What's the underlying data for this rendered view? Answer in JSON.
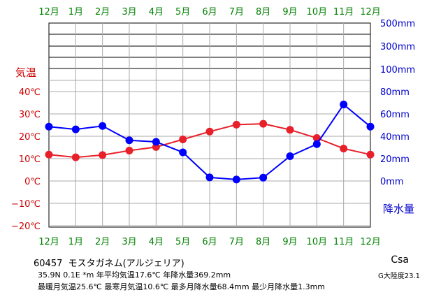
{
  "station": {
    "id": "60457",
    "name": "モスタガネム(アルジェリア)"
  },
  "info_line2": "35.9N  0.1E  *m  年平均気温17.6℃  年降水量369.2mm",
  "info_line3": "最暖月気温25.6℃ 最寒月気温10.6℃ 最多月降水量68.4mm 最少月降水量1.3mm",
  "koppen": "Csa",
  "g_zone": "G大陸度23.1",
  "colors": {
    "temperature": "#e8202a",
    "precipitation": "#0000ff",
    "month_labels": "#008000",
    "temp_axis": "#cc0000",
    "precip_axis": "#0000cc"
  },
  "chart_data": {
    "type": "line",
    "categories": [
      "12月",
      "1月",
      "2月",
      "3月",
      "4月",
      "5月",
      "6月",
      "7月",
      "8月",
      "9月",
      "10月",
      "11月",
      "12月"
    ],
    "series": [
      {
        "name": "気温",
        "axis": "left",
        "unit": "℃",
        "values": [
          11.8,
          10.6,
          11.6,
          13.6,
          15.2,
          18.6,
          22.1,
          25.2,
          25.6,
          22.9,
          19.2,
          14.5,
          11.8
        ]
      },
      {
        "name": "降水量",
        "axis": "right",
        "unit": "mm",
        "values": [
          48.6,
          46.2,
          49.2,
          36.4,
          35.0,
          25.6,
          3.2,
          1.3,
          3.0,
          22.2,
          33.0,
          68.4,
          48.6
        ]
      }
    ],
    "left_axis": {
      "title": "気温",
      "ticks": [
        "40℃",
        "30℃",
        "20℃",
        "10℃",
        "0℃",
        "−10℃",
        "−20℃"
      ],
      "range": [
        -20,
        40
      ]
    },
    "right_axis": {
      "title": "降水量",
      "ticks_linear": [
        "80mm",
        "60mm",
        "40mm",
        "20mm",
        "0mm"
      ],
      "linear_range": [
        0,
        80
      ],
      "ticks_upper": [
        "500mm",
        "300mm",
        "100mm"
      ]
    },
    "grid": true
  }
}
